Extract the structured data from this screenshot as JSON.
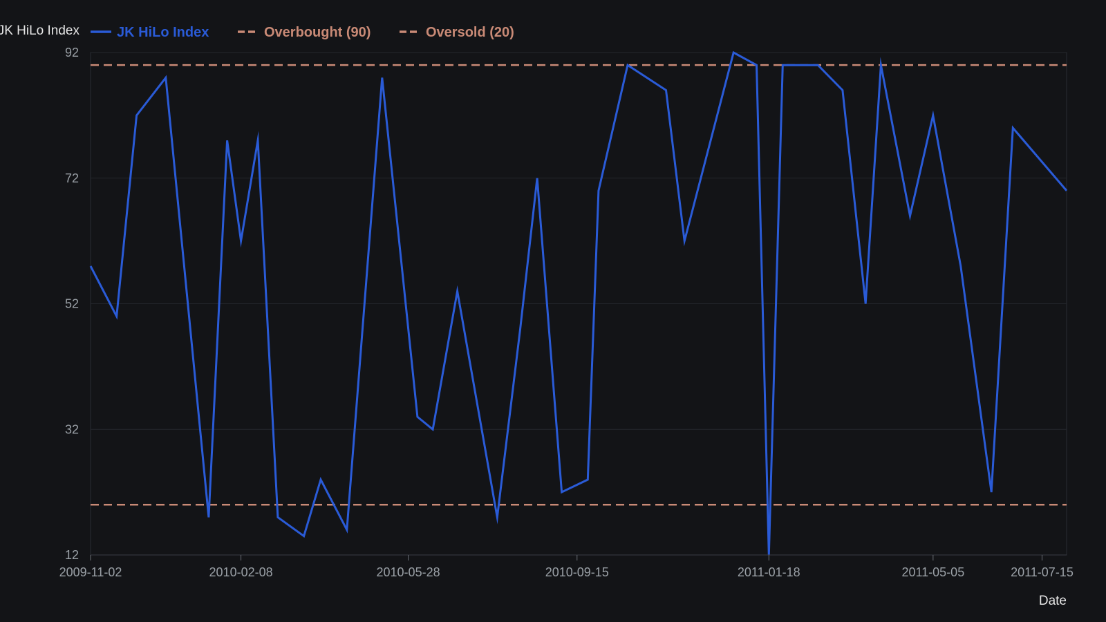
{
  "chart_data": {
    "type": "line",
    "ylabel": "JK HiLo Index",
    "xlabel": "Date",
    "ylim": [
      12,
      92
    ],
    "xlim": [
      "2009-11-02",
      "2011-07-31"
    ],
    "yticks": [
      12,
      32,
      52,
      72,
      92
    ],
    "xticks": [
      "2009-11-02",
      "2010-02-08",
      "2010-05-28",
      "2010-09-15",
      "2011-01-18",
      "2011-05-05",
      "2011-07-15"
    ],
    "grid": true,
    "legend_position": "top-left",
    "series": [
      {
        "name": "JK HiLo Index",
        "color": "#2a5bd7",
        "points": [
          {
            "x": "2009-11-02",
            "y": 58
          },
          {
            "x": "2009-11-19",
            "y": 50
          },
          {
            "x": "2009-12-02",
            "y": 82
          },
          {
            "x": "2009-12-21",
            "y": 88
          },
          {
            "x": "2010-01-18",
            "y": 18
          },
          {
            "x": "2010-01-30",
            "y": 78
          },
          {
            "x": "2010-02-08",
            "y": 62
          },
          {
            "x": "2010-02-19",
            "y": 78
          },
          {
            "x": "2010-03-04",
            "y": 18
          },
          {
            "x": "2010-03-21",
            "y": 15
          },
          {
            "x": "2010-04-01",
            "y": 24
          },
          {
            "x": "2010-04-18",
            "y": 16
          },
          {
            "x": "2010-05-11",
            "y": 88
          },
          {
            "x": "2010-06-03",
            "y": 34
          },
          {
            "x": "2010-06-13",
            "y": 32
          },
          {
            "x": "2010-06-29",
            "y": 54
          },
          {
            "x": "2010-07-25",
            "y": 18
          },
          {
            "x": "2010-08-09",
            "y": 48
          },
          {
            "x": "2010-08-20",
            "y": 72
          },
          {
            "x": "2010-09-05",
            "y": 22
          },
          {
            "x": "2010-09-22",
            "y": 24
          },
          {
            "x": "2010-09-29",
            "y": 70
          },
          {
            "x": "2010-10-18",
            "y": 90
          },
          {
            "x": "2010-11-12",
            "y": 86
          },
          {
            "x": "2010-11-24",
            "y": 62
          },
          {
            "x": "2010-12-26",
            "y": 92
          },
          {
            "x": "2011-01-10",
            "y": 90
          },
          {
            "x": "2011-01-18",
            "y": 12
          },
          {
            "x": "2011-01-27",
            "y": 90
          },
          {
            "x": "2011-02-19",
            "y": 90
          },
          {
            "x": "2011-03-07",
            "y": 86
          },
          {
            "x": "2011-03-22",
            "y": 52
          },
          {
            "x": "2011-04-01",
            "y": 90
          },
          {
            "x": "2011-04-20",
            "y": 66
          },
          {
            "x": "2011-05-05",
            "y": 82
          },
          {
            "x": "2011-05-23",
            "y": 58
          },
          {
            "x": "2011-06-12",
            "y": 22
          },
          {
            "x": "2011-06-26",
            "y": 80
          },
          {
            "x": "2011-07-31",
            "y": 70
          }
        ]
      },
      {
        "name": "Overbought (90)",
        "color": "#c98a76",
        "dashed": true,
        "y": 90
      },
      {
        "name": "Oversold (20)",
        "color": "#c98a76",
        "dashed": true,
        "y": 20
      }
    ]
  }
}
